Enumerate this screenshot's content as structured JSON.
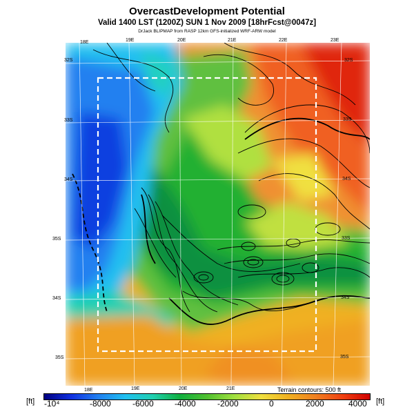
{
  "titles": {
    "main": "OvercastDevelopment Potential",
    "valid": "Valid 1400 LST (1200Z) SUN 1 Nov 2009 [18hrFcst@0047z]",
    "credit": "DrJack BLIPMAP from RASP 12km GFS-initialized WRF-ARW model"
  },
  "map": {
    "lon_top": [
      "18E",
      "19E",
      "20E",
      "21E",
      "22E",
      "23E"
    ],
    "lon_bottom": [
      "18E",
      "19E",
      "20E",
      "21E"
    ],
    "lat_left": [
      "32S",
      "33S",
      "34S",
      "35S",
      "34S",
      "35S"
    ],
    "lat_right": [
      "32S",
      "33S",
      "34S",
      "33S",
      "34S",
      "35S"
    ],
    "contour_note": "Terrain contours: 500 ft",
    "colors": {
      "deep_blue": "#1030e0",
      "blue": "#2080f0",
      "cyan": "#20c0f0",
      "teal": "#20c0a0",
      "green": "#20b030",
      "lime": "#a0e040",
      "yellow": "#f0e040",
      "orange": "#f0a020",
      "red_orange": "#f06020",
      "red": "#e02010"
    }
  },
  "colorbar": {
    "unit_left": "[ft]",
    "unit_right": "[ft]",
    "labels": [
      "-10⁴",
      "-8000",
      "-6000",
      "-4000",
      "-2000",
      "0",
      "2000",
      "4000"
    ],
    "stops": [
      "#000080",
      "#1030e0",
      "#2080f0",
      "#20c0f0",
      "#20d0b0",
      "#10b040",
      "#50c030",
      "#a0e040",
      "#f0e040",
      "#f0b020",
      "#f08020",
      "#f04010",
      "#d00000"
    ]
  }
}
